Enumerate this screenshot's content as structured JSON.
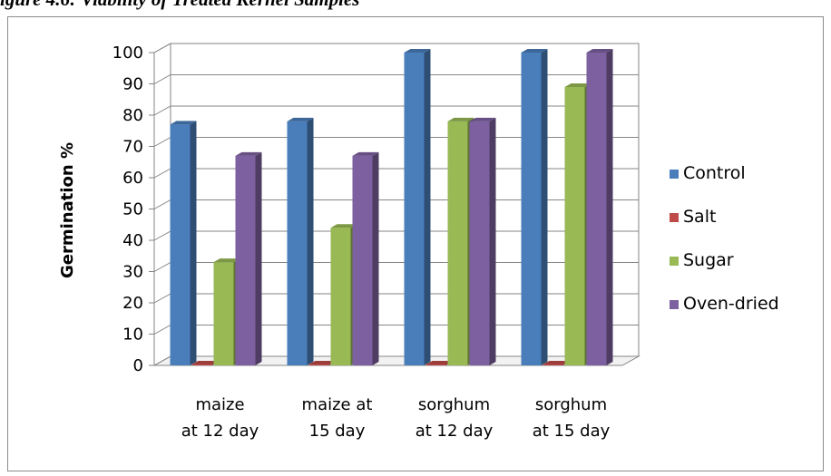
{
  "figure_caption": "igure 4.6: Viability of Treated Kernel Samples",
  "chart_data": {
    "type": "bar",
    "title": "",
    "xlabel": "",
    "ylabel": "Germination %",
    "ylim": [
      0,
      100
    ],
    "yticks": [
      0,
      10,
      20,
      30,
      40,
      50,
      60,
      70,
      80,
      90,
      100
    ],
    "categories": [
      [
        "maize",
        "at 12 day"
      ],
      [
        "maize at",
        "15 day"
      ],
      [
        "sorghum",
        "at 12 day"
      ],
      [
        "sorghum",
        "at 15 day"
      ]
    ],
    "series": [
      {
        "name": "Control",
        "values": [
          77,
          78,
          100,
          100
        ],
        "color": "#4a7ebb"
      },
      {
        "name": "Salt",
        "values": [
          0,
          0,
          0,
          0
        ],
        "color": "#be4b48"
      },
      {
        "name": "Sugar",
        "values": [
          33,
          44,
          78,
          89
        ],
        "color": "#98b954"
      },
      {
        "name": "Oven-dried",
        "values": [
          67,
          67,
          78,
          100
        ],
        "color": "#7d60a0"
      }
    ],
    "grid": true,
    "legend_position": "right",
    "style": "3d"
  }
}
